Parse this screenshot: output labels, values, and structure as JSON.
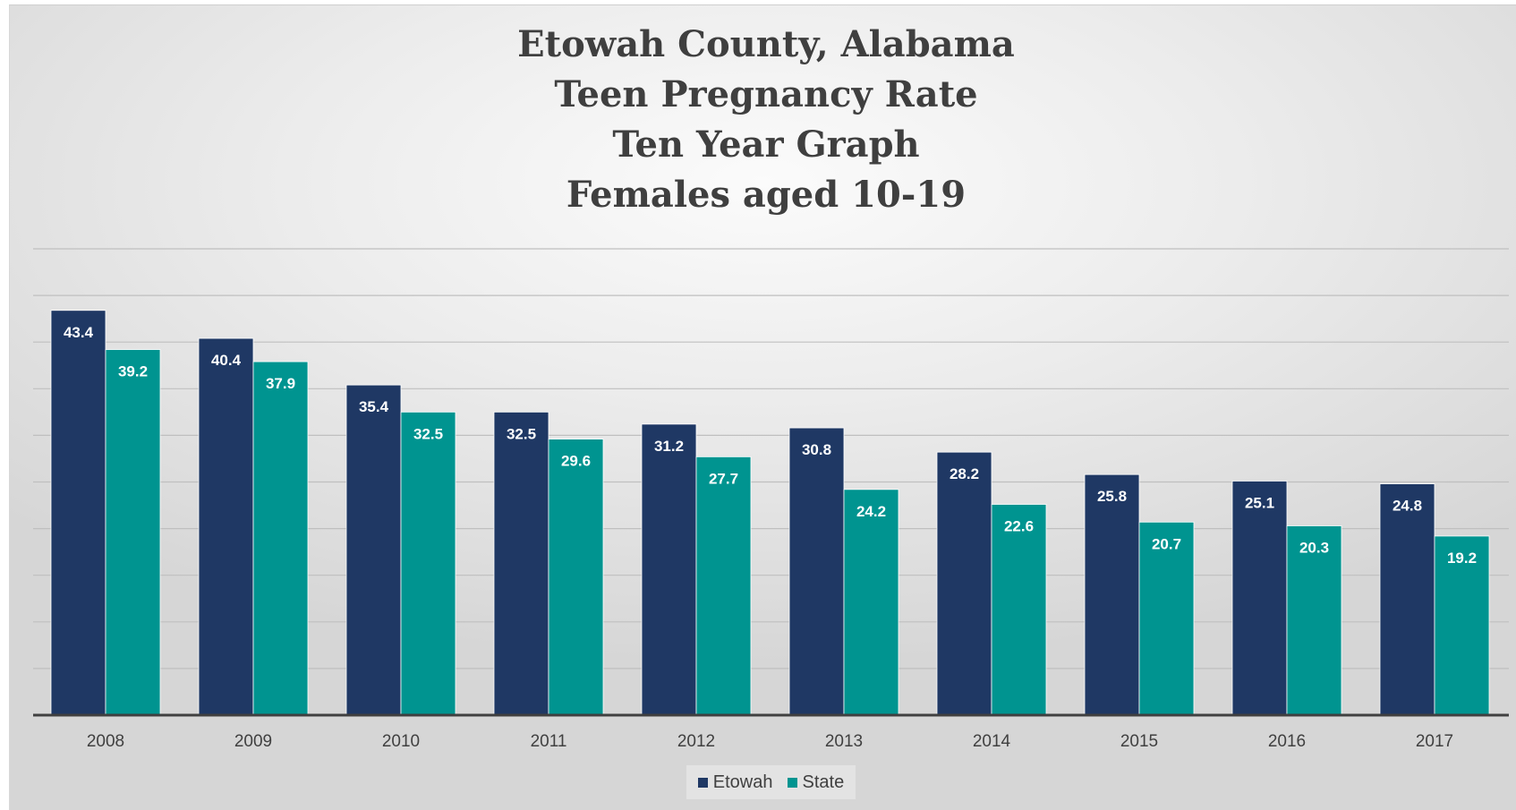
{
  "chart_data": {
    "type": "bar",
    "title": [
      "Etowah County, Alabama",
      "Teen Pregnancy Rate",
      "Ten Year Graph",
      "Females aged 10-19"
    ],
    "categories": [
      "2008",
      "2009",
      "2010",
      "2011",
      "2012",
      "2013",
      "2014",
      "2015",
      "2016",
      "2017"
    ],
    "series": [
      {
        "name": "Etowah",
        "color": "#1f3864",
        "values": [
          43.4,
          40.4,
          35.4,
          32.5,
          31.2,
          30.8,
          28.2,
          25.8,
          25.1,
          24.8
        ]
      },
      {
        "name": "State",
        "color": "#009490",
        "values": [
          39.2,
          37.9,
          32.5,
          29.6,
          27.7,
          24.2,
          22.6,
          20.7,
          20.3,
          19.2
        ]
      }
    ],
    "ylim": [
      0,
      50
    ],
    "grid": true,
    "legend": "bottom"
  }
}
